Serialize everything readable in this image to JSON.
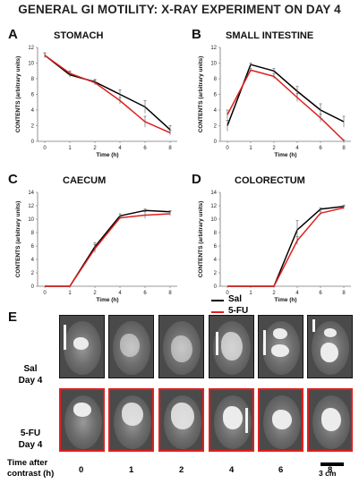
{
  "figure": {
    "title": "GENERAL GI MOTILITY: X-RAY EXPERIMENT ON DAY 4"
  },
  "colors": {
    "sal": "#000000",
    "fu": "#e11f1f"
  },
  "chart_data": [
    {
      "panel": "A",
      "type": "line",
      "title": "STOMACH",
      "x": [
        0,
        1,
        2,
        4,
        6,
        8
      ],
      "xlabel": "Time (h)",
      "ylabel": "CONTENTS (arbitrary units)",
      "ylim": [
        0,
        12
      ],
      "yticks": [
        0,
        2,
        4,
        6,
        8,
        10,
        12
      ],
      "series": [
        {
          "name": "Sal",
          "values": [
            11,
            8.5,
            7.6,
            6.0,
            4.4,
            1.5
          ],
          "errors": [
            0.3,
            0.3,
            0.3,
            0.6,
            0.8,
            0.5
          ]
        },
        {
          "name": "5-FU",
          "values": [
            11,
            8.7,
            7.5,
            5.2,
            2.5,
            1.1
          ],
          "errors": [
            0.3,
            0.3,
            0.3,
            0.4,
            0.7,
            0.3
          ]
        }
      ]
    },
    {
      "panel": "B",
      "type": "line",
      "title": "SMALL INTESTINE",
      "x": [
        0,
        1,
        2,
        4,
        6,
        8
      ],
      "xlabel": "Time (h)",
      "ylabel": "CONTENTS (arbitrary units)",
      "ylim": [
        0,
        12
      ],
      "yticks": [
        0,
        2,
        4,
        6,
        8,
        10,
        12
      ],
      "series": [
        {
          "name": "Sal",
          "values": [
            2.0,
            9.8,
            9.0,
            6.4,
            4.0,
            2.5
          ],
          "errors": [
            0.7,
            0.2,
            0.3,
            0.6,
            0.8,
            0.7
          ]
        },
        {
          "name": "5-FU",
          "values": [
            3.4,
            9.1,
            8.3,
            5.6,
            3.0,
            0.1
          ],
          "errors": [
            0.6,
            0.2,
            0.3,
            0.5,
            0.5,
            0.1
          ]
        }
      ]
    },
    {
      "panel": "C",
      "type": "line",
      "title": "CAECUM",
      "x": [
        0,
        1,
        2,
        4,
        6,
        8
      ],
      "xlabel": "Time (h)",
      "ylabel": "CONTENTS (arbitrary units)",
      "ylim": [
        0,
        14
      ],
      "yticks": [
        0,
        2,
        4,
        6,
        8,
        10,
        12,
        14
      ],
      "series": [
        {
          "name": "Sal",
          "values": [
            0,
            0,
            5.9,
            10.5,
            11.3,
            11.1
          ],
          "errors": [
            0,
            0,
            0.6,
            0.3,
            0.2,
            0.2
          ]
        },
        {
          "name": "5-FU",
          "values": [
            0,
            0,
            5.6,
            10.2,
            10.6,
            10.8
          ],
          "errors": [
            0,
            0,
            0.6,
            0.2,
            0.5,
            0.3
          ]
        }
      ]
    },
    {
      "panel": "D",
      "type": "line",
      "title": "COLORECTUM",
      "x": [
        0,
        1,
        2,
        4,
        6,
        8
      ],
      "xlabel": "Time (h)",
      "ylabel": "CONTENTS (arbitrary units)",
      "ylim": [
        0,
        14
      ],
      "yticks": [
        0,
        2,
        4,
        6,
        8,
        10,
        12,
        14
      ],
      "series": [
        {
          "name": "Sal",
          "values": [
            0,
            0,
            0,
            8.4,
            11.5,
            11.9
          ],
          "errors": [
            0,
            0,
            0,
            1.4,
            0.2,
            0.2
          ]
        },
        {
          "name": "5-FU",
          "values": [
            0,
            0,
            0,
            6.8,
            10.9,
            11.7
          ],
          "errors": [
            0,
            0,
            0,
            0.6,
            0.3,
            0.2
          ]
        }
      ]
    }
  ],
  "panel_e": {
    "letter": "E",
    "legend": {
      "sal": "Sal",
      "fu": "5-FU"
    },
    "row_sal": {
      "line1": "Sal",
      "line2": "Day 4"
    },
    "row_fu": {
      "line1": "5-FU",
      "line2": "Day 4"
    },
    "time_label_line1": "Time after",
    "time_label_line2": "contrast (h)",
    "times": [
      "0",
      "1",
      "2",
      "4",
      "6",
      "8"
    ],
    "scale": "3 cm"
  }
}
